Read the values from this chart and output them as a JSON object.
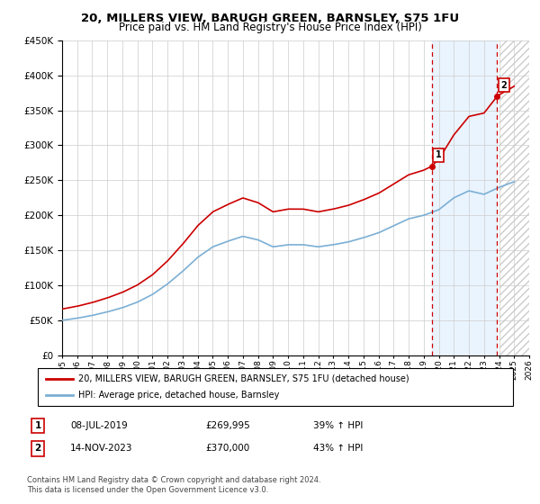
{
  "title": "20, MILLERS VIEW, BARUGH GREEN, BARNSLEY, S75 1FU",
  "subtitle": "Price paid vs. HM Land Registry's House Price Index (HPI)",
  "legend_label_red": "20, MILLERS VIEW, BARUGH GREEN, BARNSLEY, S75 1FU (detached house)",
  "legend_label_blue": "HPI: Average price, detached house, Barnsley",
  "footer": "Contains HM Land Registry data © Crown copyright and database right 2024.\nThis data is licensed under the Open Government Licence v3.0.",
  "transaction1_date": "08-JUL-2019",
  "transaction1_price": "£269,995",
  "transaction1_hpi": "39% ↑ HPI",
  "transaction1_year": 2019.52,
  "transaction1_value": 269995,
  "transaction2_date": "14-NOV-2023",
  "transaction2_price": "£370,000",
  "transaction2_hpi": "43% ↑ HPI",
  "transaction2_year": 2023.87,
  "transaction2_value": 370000,
  "ylim_min": 0,
  "ylim_max": 450000,
  "xlim_min": 1995,
  "xlim_max": 2026,
  "future_start": 2024.0,
  "red_color": "#cc0000",
  "blue_color": "#7bafd4",
  "marker_box_color": "#cc0000",
  "shade_blue_color": "#ddeeff",
  "hatch_color": "#cccccc",
  "grid_color": "#cccccc",
  "bg_color": "#ffffff"
}
